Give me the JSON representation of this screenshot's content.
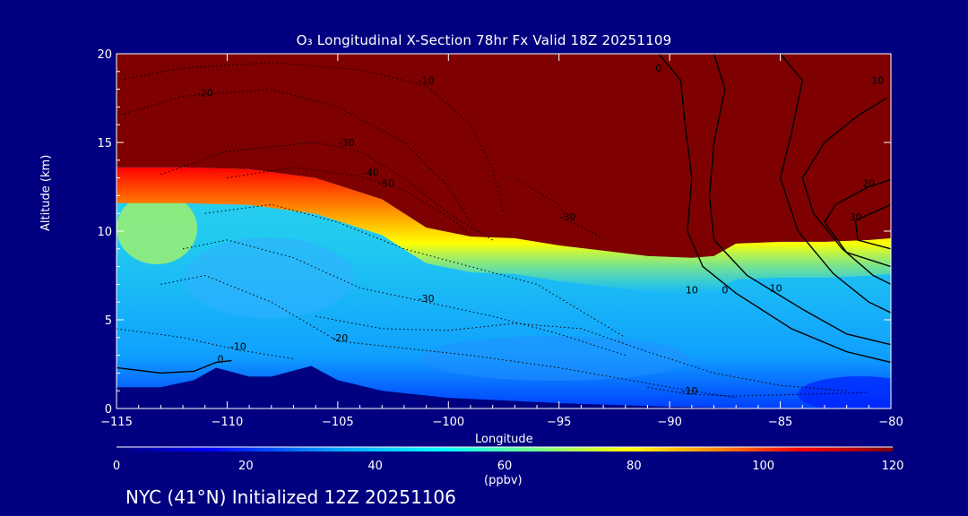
{
  "chart_data": {
    "type": "heatmap",
    "title": "O₃ Longitudinal X-Section 78hr  Fx Valid 18Z 20251109",
    "xlabel": "Longitude",
    "ylabel": "Altitude (km)",
    "xlim": [
      -115,
      -80
    ],
    "ylim": [
      0,
      20
    ],
    "xticks": [
      -115,
      -110,
      -105,
      -100,
      -95,
      -90,
      -85,
      -80
    ],
    "yticks": [
      0,
      5,
      10,
      15,
      20
    ],
    "colorbar": {
      "min": 0,
      "max": 120,
      "ticks": [
        0,
        20,
        40,
        60,
        80,
        100,
        120
      ],
      "units": "(ppbv)",
      "colors": [
        "#00007f",
        "#0000ff",
        "#00a0ff",
        "#00ffff",
        "#80ff80",
        "#ffff00",
        "#ff8000",
        "#ff0000",
        "#7f0000"
      ]
    },
    "tropopause_height_km": {
      "lon": [
        -115,
        -112,
        -109,
        -106,
        -103,
        -101,
        -99,
        -97,
        -95,
        -93,
        -91,
        -89,
        -88,
        -87,
        -85,
        -83,
        -81,
        -80
      ],
      "alt": [
        13.6,
        13.6,
        13.5,
        13.0,
        11.8,
        10.2,
        9.7,
        9.6,
        9.2,
        8.9,
        8.6,
        8.5,
        8.6,
        9.3,
        9.4,
        9.4,
        9.5,
        9.6
      ]
    },
    "terrain_km": {
      "lon": [
        -115,
        -113,
        -111.5,
        -110.5,
        -109,
        -108,
        -106.2,
        -105,
        -103,
        -100,
        -95,
        -90,
        -85,
        -80
      ],
      "alt": [
        1.2,
        1.2,
        1.6,
        2.3,
        1.8,
        1.8,
        2.4,
        1.6,
        1.0,
        0.6,
        0.3,
        0.1,
        0.0,
        0.0
      ]
    },
    "contour_labels": [
      {
        "text": "-20",
        "lon": -111,
        "alt": 17.6
      },
      {
        "text": "-10",
        "lon": -101,
        "alt": 18.3
      },
      {
        "text": "-30",
        "lon": -104.6,
        "alt": 14.8
      },
      {
        "text": "-40",
        "lon": -103.5,
        "alt": 13.1
      },
      {
        "text": "-50",
        "lon": -102.8,
        "alt": 12.5
      },
      {
        "text": "-30",
        "lon": -94.6,
        "alt": 10.6
      },
      {
        "text": "-30",
        "lon": -101,
        "alt": 6.0
      },
      {
        "text": "-20",
        "lon": -104.9,
        "alt": 3.8
      },
      {
        "text": "-10",
        "lon": -109.5,
        "alt": 3.3
      },
      {
        "text": "0",
        "lon": -110.3,
        "alt": 2.6
      },
      {
        "text": "-10",
        "lon": -89.1,
        "alt": 0.8
      },
      {
        "text": "10",
        "lon": -89,
        "alt": 6.5
      },
      {
        "text": "0",
        "lon": -87.5,
        "alt": 6.5
      },
      {
        "text": "10",
        "lon": -85.2,
        "alt": 6.6
      },
      {
        "text": "20",
        "lon": -81,
        "alt": 12.5
      },
      {
        "text": "30",
        "lon": -81.6,
        "alt": 10.6
      },
      {
        "text": "10",
        "lon": -80.6,
        "alt": 18.3
      },
      {
        "text": "0",
        "lon": -90.5,
        "alt": 19.0
      }
    ]
  },
  "footer": "NYC (41°N) Initialized 12Z 20251106"
}
